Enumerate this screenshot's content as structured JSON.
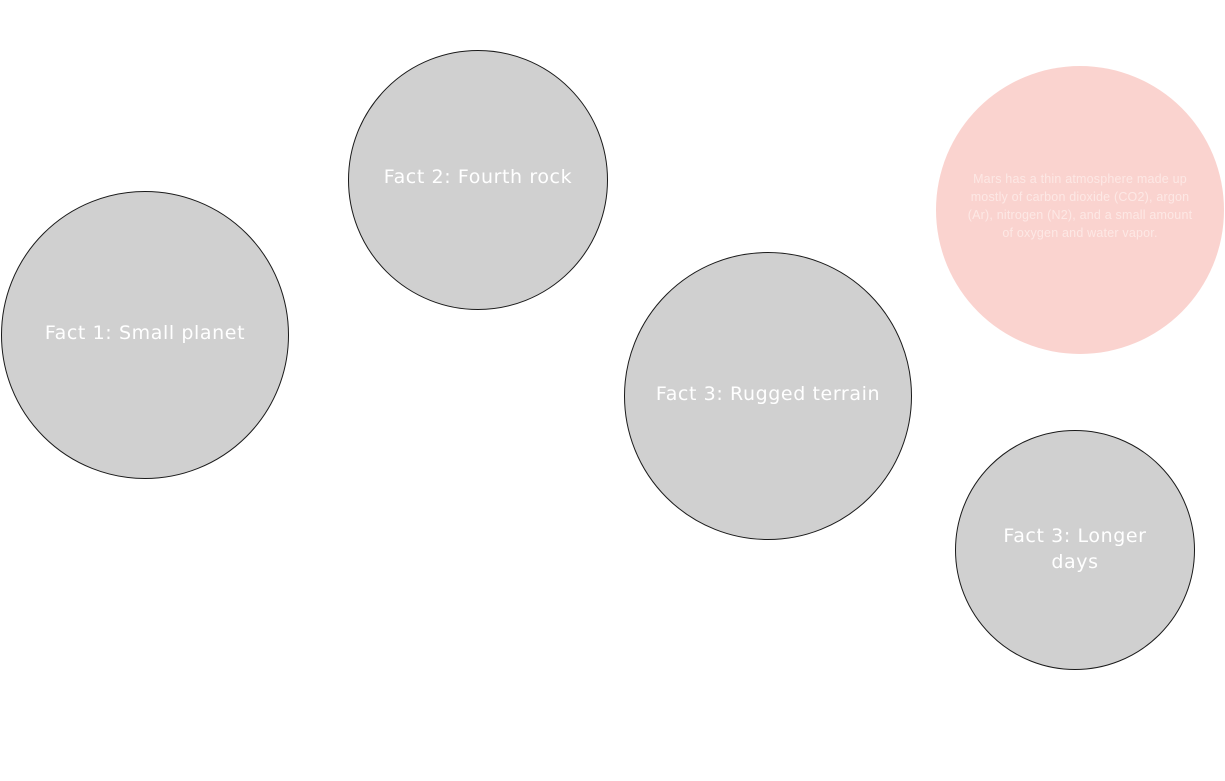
{
  "bubbles": [
    {
      "label": "Fact 1: Small planet"
    },
    {
      "label": "Fact 2: Fourth rock"
    },
    {
      "label": "Fact 3: Rugged terrain"
    },
    {
      "label": "Mars has a thin atmosphere made up mostly of carbon dioxide (CO2), argon (Ar), nitrogen (N2), and a small amount of oxygen and water vapor."
    },
    {
      "label": "Fact 3: Longer days"
    }
  ],
  "colors": {
    "fact_bubble": "#d0d0d0",
    "note_bubble": "#fad3cf",
    "text": "#ffffff"
  }
}
